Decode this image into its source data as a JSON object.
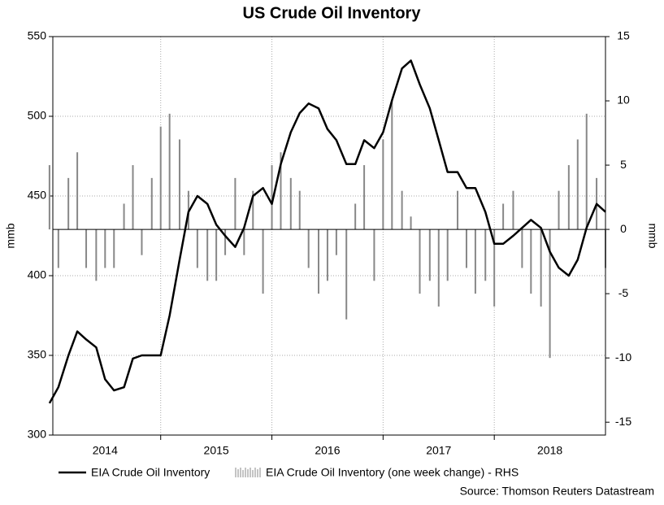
{
  "chart_data": {
    "type": "line-bar",
    "title": "US Crude Oil Inventory",
    "y_label": "mmb",
    "y2_label": "mmb",
    "source": "Source: Thomson Reuters Datastream",
    "x": [
      2014.0,
      2014.08,
      2014.17,
      2014.25,
      2014.33,
      2014.42,
      2014.5,
      2014.58,
      2014.67,
      2014.75,
      2014.83,
      2014.92,
      2015.0,
      2015.08,
      2015.17,
      2015.25,
      2015.33,
      2015.42,
      2015.5,
      2015.58,
      2015.67,
      2015.75,
      2015.83,
      2015.92,
      2016.0,
      2016.08,
      2016.17,
      2016.25,
      2016.33,
      2016.42,
      2016.5,
      2016.58,
      2016.67,
      2016.75,
      2016.83,
      2016.92,
      2017.0,
      2017.08,
      2017.17,
      2017.25,
      2017.33,
      2017.42,
      2017.5,
      2017.58,
      2017.67,
      2017.75,
      2017.83,
      2017.92,
      2018.0,
      2018.08,
      2018.17,
      2018.25,
      2018.33,
      2018.42,
      2018.5,
      2018.58,
      2018.67,
      2018.75,
      2018.83,
      2018.92,
      2019.0
    ],
    "xlim": [
      2014.03,
      2019.0
    ],
    "xticks": [
      {
        "value": 2014.5,
        "label": "2014"
      },
      {
        "value": 2015.5,
        "label": "2015"
      },
      {
        "value": 2016.5,
        "label": "2016"
      },
      {
        "value": 2017.5,
        "label": "2017"
      },
      {
        "value": 2018.5,
        "label": "2018"
      }
    ],
    "xgrid": [
      2015,
      2016,
      2017,
      2018
    ],
    "ylim": [
      300,
      550
    ],
    "yticks": [
      300,
      350,
      400,
      450,
      500,
      550
    ],
    "y2lim": [
      -16,
      15
    ],
    "y2ticks": [
      -15,
      -10,
      -5,
      0,
      5,
      10,
      15
    ],
    "grid": true,
    "series": [
      {
        "name": "EIA Crude Oil Inventory",
        "color": "#000000",
        "type": "line",
        "values": [
          320,
          330,
          350,
          365,
          360,
          355,
          335,
          328,
          330,
          348,
          350,
          350,
          350,
          375,
          410,
          440,
          450,
          445,
          432,
          425,
          418,
          430,
          450,
          455,
          445,
          470,
          490,
          502,
          508,
          505,
          492,
          485,
          470,
          470,
          485,
          480,
          490,
          510,
          530,
          535,
          520,
          505,
          485,
          465,
          465,
          455,
          455,
          440,
          420,
          420,
          425,
          430,
          435,
          430,
          415,
          405,
          400,
          410,
          430,
          445,
          440
        ]
      },
      {
        "name": "EIA Crude Oil Inventory (one week change) - RHS",
        "color": "#888888",
        "type": "bar",
        "axis": "y2",
        "values": [
          5,
          -3,
          4,
          6,
          -3,
          -4,
          -3,
          -3,
          2,
          5,
          -2,
          4,
          8,
          9,
          7,
          3,
          -3,
          -4,
          -4,
          -2,
          4,
          -2,
          3,
          -5,
          5,
          6,
          4,
          3,
          -3,
          -5,
          -4,
          -2,
          -7,
          2,
          5,
          -4,
          7,
          10,
          3,
          1,
          -5,
          -4,
          -6,
          -4,
          3,
          -3,
          -5,
          -4,
          -6,
          2,
          3,
          -3,
          -5,
          -6,
          -10,
          3,
          5,
          7,
          9,
          4,
          -3
        ]
      }
    ]
  }
}
